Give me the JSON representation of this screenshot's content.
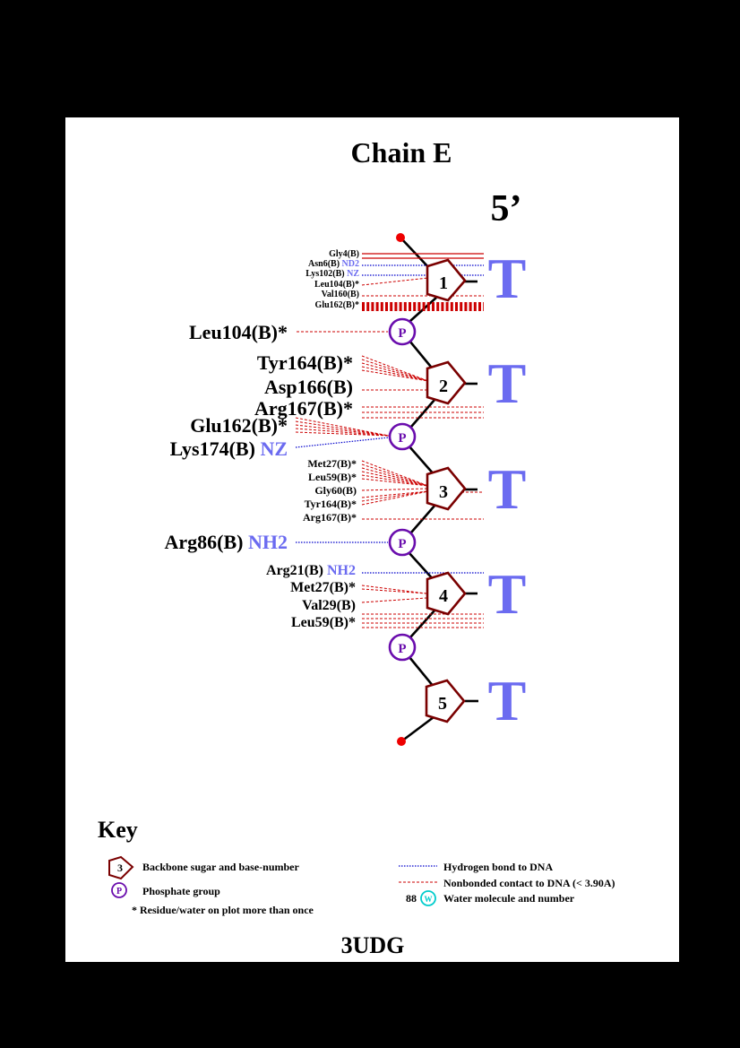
{
  "title": "Chain E",
  "end_label": "5’",
  "footer": "3UDG",
  "phosphate_symbol": "P",
  "water_symbol": "W",
  "colors": {
    "sugar": "#7a0000",
    "phosphate": "#6a0dad",
    "hbond": "#0000cc",
    "nonbond": "#cc0000",
    "base": "#6b6bf0",
    "atom_blue": "#6b6bf0",
    "terminal": "#ee0000",
    "water": "#00cccc"
  },
  "nucleotides": [
    {
      "number": "1",
      "base": "T"
    },
    {
      "number": "2",
      "base": "T"
    },
    {
      "number": "3",
      "base": "T"
    },
    {
      "number": "4",
      "base": "T"
    },
    {
      "number": "5",
      "base": "T"
    }
  ],
  "residues": [
    {
      "name": "Gly4(B)",
      "atom": "",
      "target": "sugar-1"
    },
    {
      "name": "Asn6(B)",
      "atom": "ND2",
      "target": "sugar-1"
    },
    {
      "name": "Lys102(B)",
      "atom": "NZ",
      "target": "sugar-1"
    },
    {
      "name": "Leu104(B)*",
      "atom": "",
      "target": "sugar-1"
    },
    {
      "name": "Val160(B)",
      "atom": "",
      "target": "sugar-1"
    },
    {
      "name": "Glu162(B)*",
      "atom": "",
      "target": "sugar-1"
    },
    {
      "name": "Leu104(B)*",
      "atom": "",
      "target": "phosphate-1"
    },
    {
      "name": "Tyr164(B)*",
      "atom": "",
      "target": "sugar-2"
    },
    {
      "name": "Asp166(B)",
      "atom": "",
      "target": "sugar-2"
    },
    {
      "name": "Arg167(B)*",
      "atom": "",
      "target": "sugar-2"
    },
    {
      "name": "Glu162(B)*",
      "atom": "",
      "target": "phosphate-2"
    },
    {
      "name": "Lys174(B)",
      "atom": "NZ",
      "target": "phosphate-2"
    },
    {
      "name": "Met27(B)*",
      "atom": "",
      "target": "sugar-3"
    },
    {
      "name": "Leu59(B)*",
      "atom": "",
      "target": "sugar-3"
    },
    {
      "name": "Gly60(B)",
      "atom": "",
      "target": "sugar-3"
    },
    {
      "name": "Tyr164(B)*",
      "atom": "",
      "target": "sugar-3"
    },
    {
      "name": "Arg167(B)*",
      "atom": "",
      "target": "sugar-3"
    },
    {
      "name": "Arg86(B)",
      "atom": "NH2",
      "target": "phosphate-3"
    },
    {
      "name": "Arg21(B)",
      "atom": "NH2",
      "target": "sugar-4"
    },
    {
      "name": "Met27(B)*",
      "atom": "",
      "target": "sugar-4"
    },
    {
      "name": "Val29(B)",
      "atom": "",
      "target": "sugar-4"
    },
    {
      "name": "Leu59(B)*",
      "atom": "",
      "target": "sugar-4"
    }
  ],
  "key": {
    "title": "Key",
    "sugar_example_number": "3",
    "sugar_label": "Backbone sugar and base-number",
    "phosphate_label": "Phosphate group",
    "repeat_label": "* Residue/water on plot more than once",
    "hbond_label": "Hydrogen bond to DNA",
    "nonbond_label": "Nonbonded contact to DNA (< 3.90A)",
    "water_example_number": "88",
    "water_label": "Water molecule and number"
  }
}
